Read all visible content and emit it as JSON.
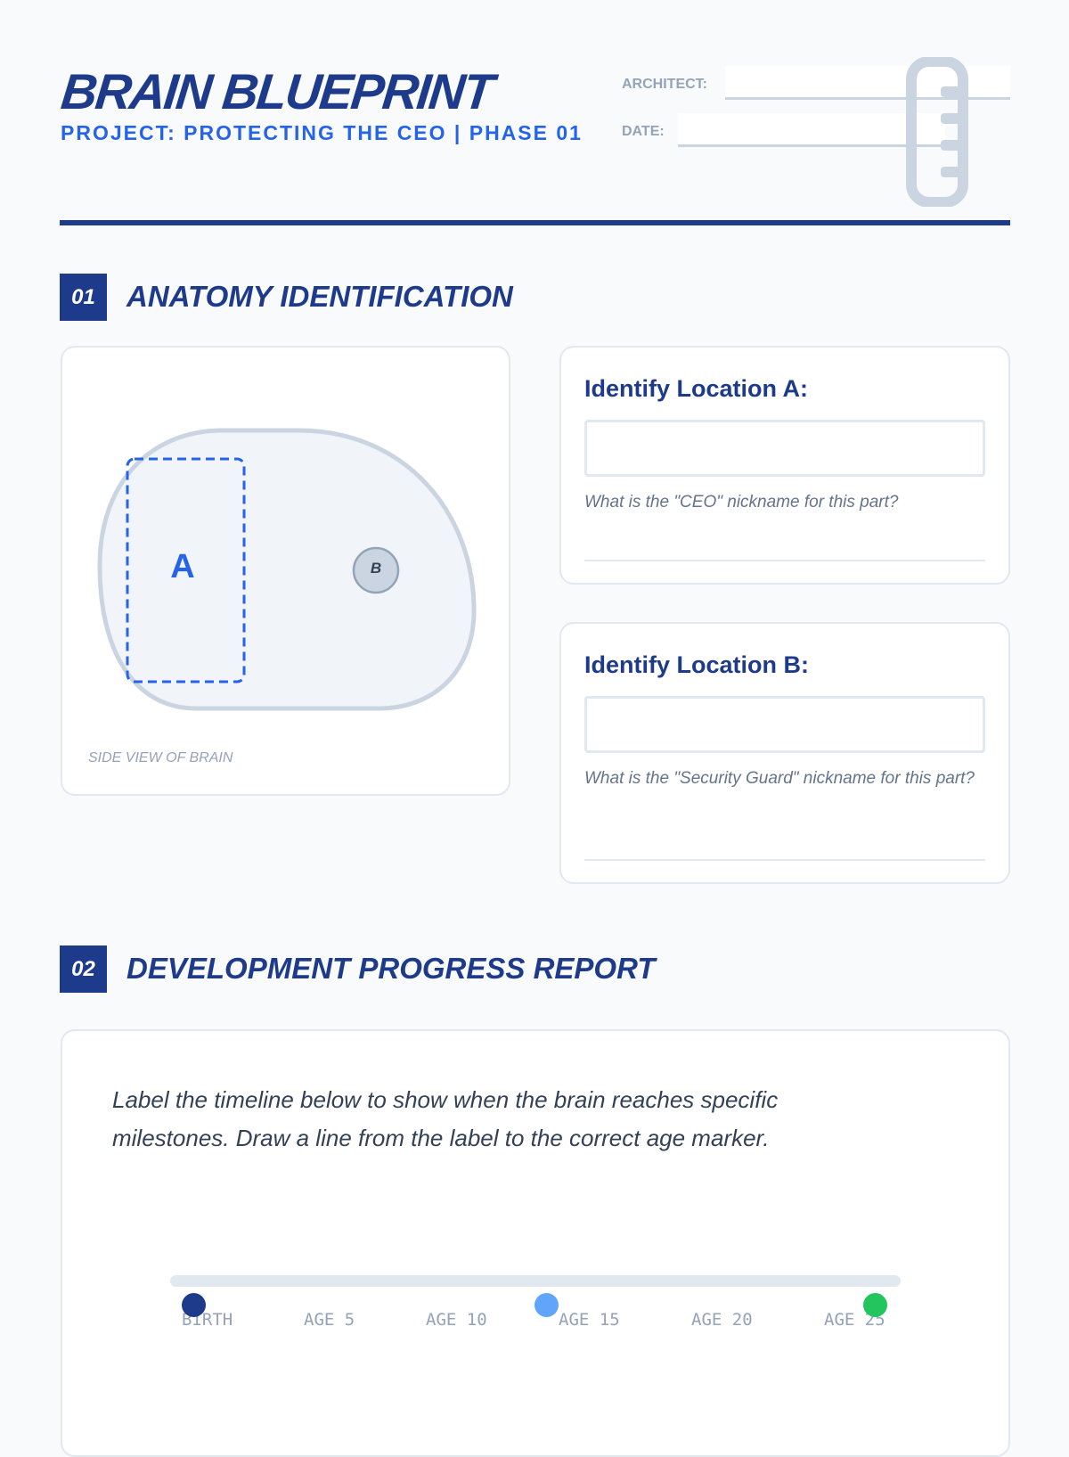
{
  "header": {
    "title": "BRAIN BLUEPRINT",
    "subtitle": "PROJECT: PROTECTING THE CEO | PHASE 01",
    "architect_label": "ARCHITECT:",
    "architect_value": "",
    "date_label": "DATE:",
    "date_value": "",
    "ruler_icon": "ruler-icon"
  },
  "section1": {
    "number": "01",
    "title": "ANATOMY IDENTIFICATION",
    "diagram": {
      "label_a": "A",
      "label_b": "B",
      "caption": "SIDE VIEW OF BRAIN"
    },
    "questions": [
      {
        "title": "Identify Location A:",
        "value": "",
        "hint": "What is the \"CEO\" nickname for this part?"
      },
      {
        "title": "Identify Location B:",
        "value": "",
        "hint": "What is the \"Security Guard\" nickname for this part?"
      }
    ]
  },
  "section2": {
    "number": "02",
    "title": "DEVELOPMENT PROGRESS REPORT",
    "instructions": "Label the timeline below to show when the brain reaches specific milestones. Draw a line from the label to the correct age marker.",
    "timeline": {
      "ticks": [
        "BIRTH",
        "AGE 5",
        "AGE 10",
        "AGE 15",
        "AGE 20",
        "AGE 25"
      ],
      "markers": [
        {
          "name": "birth-marker",
          "color": "#1e3a8a"
        },
        {
          "name": "teen-marker",
          "color": "#60a5fa"
        },
        {
          "name": "age-25-marker",
          "color": "#22c55e"
        }
      ]
    }
  },
  "colors": {
    "primary": "#1e3a8a",
    "accent": "#2563eb",
    "muted": "#94a3b8"
  }
}
